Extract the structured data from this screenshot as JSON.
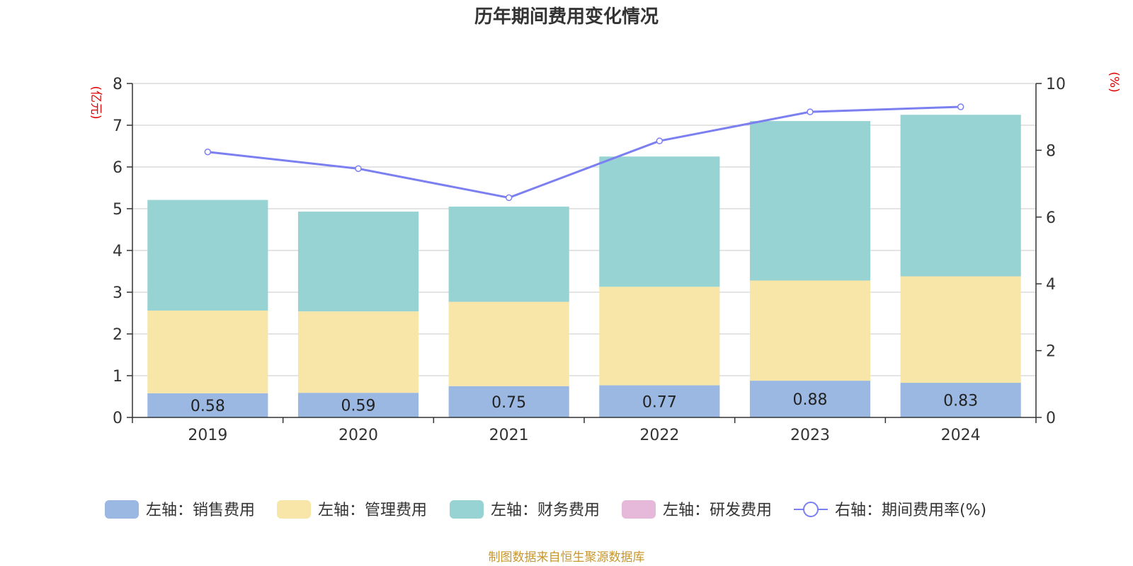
{
  "colors": {
    "sales": "#9bb8e2",
    "admin": "#f7e6a8",
    "finance": "#97d3d3",
    "rnd": "#e6b8d9",
    "rate": "#7b7ff0",
    "grid": "#c8c8c8",
    "axis": "#333333",
    "unit": "#e00000",
    "source": "#c8962e"
  },
  "chart_data": {
    "type": "bar",
    "title": "历年期间费用变化情况",
    "categories": [
      "2019",
      "2020",
      "2021",
      "2022",
      "2023",
      "2024"
    ],
    "left_axis": {
      "unit": "(亿元)",
      "ylim": [
        0,
        8
      ],
      "ticks": [
        "0",
        "1",
        "2",
        "3",
        "4",
        "5",
        "6",
        "7",
        "8"
      ]
    },
    "right_axis": {
      "unit": "(%)",
      "ylim": [
        0,
        10
      ],
      "ticks": [
        "0",
        "2",
        "4",
        "6",
        "8",
        "10"
      ]
    },
    "stacked": true,
    "series": [
      {
        "name": "左轴：销售费用",
        "axis": "left",
        "type": "bar",
        "color": "#9bb8e2",
        "values": [
          0.58,
          0.59,
          0.75,
          0.77,
          0.88,
          0.83
        ],
        "labels": [
          "0.58",
          "0.59",
          "0.75",
          "0.77",
          "0.88",
          "0.83"
        ]
      },
      {
        "name": "左轴：管理费用",
        "axis": "left",
        "type": "bar",
        "color": "#f7e6a8",
        "values": [
          1.98,
          1.95,
          2.02,
          2.36,
          2.4,
          2.55
        ]
      },
      {
        "name": "左轴：财务费用",
        "axis": "left",
        "type": "bar",
        "color": "#97d3d3",
        "values": [
          2.65,
          2.39,
          2.28,
          3.12,
          3.82,
          3.87
        ]
      },
      {
        "name": "左轴：研发费用",
        "axis": "left",
        "type": "bar",
        "color": "#e6b8d9",
        "values": [
          0,
          0,
          0,
          0,
          0,
          0
        ]
      },
      {
        "name": "右轴：期间费用率(%)",
        "axis": "right",
        "type": "line",
        "color": "#7b7ff0",
        "values": [
          7.95,
          7.45,
          6.58,
          8.28,
          9.15,
          9.3
        ]
      }
    ],
    "grid": true,
    "legend_position": "bottom"
  },
  "source": "制图数据来自恒生聚源数据库"
}
